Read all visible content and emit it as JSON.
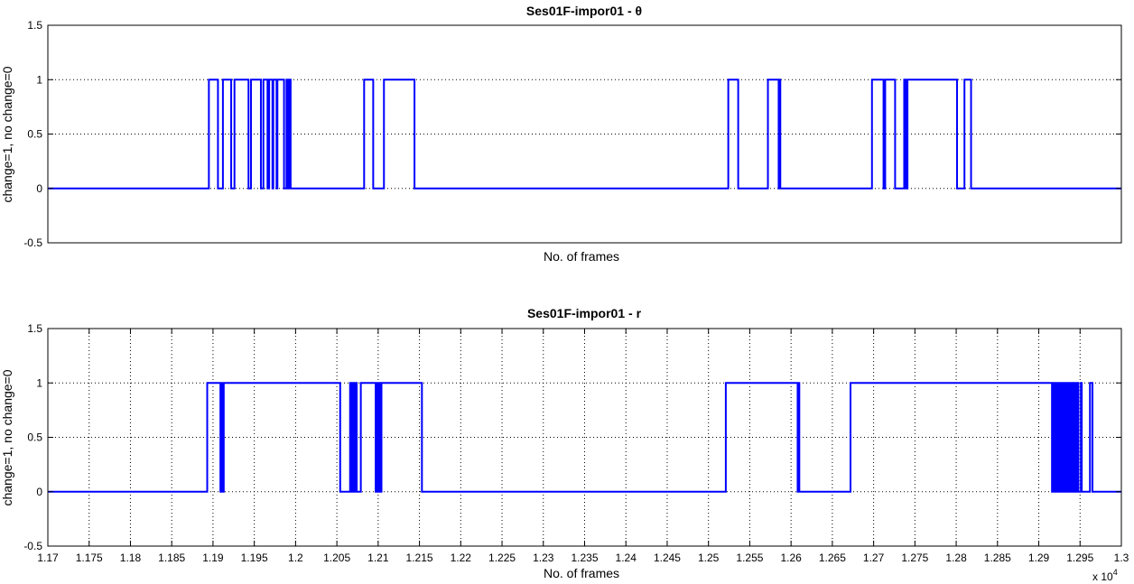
{
  "chart_data": [
    {
      "type": "line",
      "title": "Ses01F-impor01 - θ",
      "xlabel": "No. of frames",
      "ylabel": "change=1, no change=0",
      "xlim": [
        11700,
        13000
      ],
      "ylim": [
        -0.5,
        1.5
      ],
      "xgrid": false,
      "ygrid": true,
      "yticks": [
        "-0.5",
        "0",
        "0.5",
        "1",
        "1.5"
      ],
      "xticks": [],
      "series": [
        {
          "color": "#0000ff",
          "intervals_value_1": [
            [
              11895,
              11906
            ],
            [
              11912,
              11922
            ],
            [
              11926,
              11943
            ],
            [
              11946,
              11958
            ],
            [
              11961,
              11966
            ],
            [
              11968,
              11972
            ],
            [
              11973,
              11977
            ],
            [
              11978,
              11986
            ],
            [
              11989,
              11990
            ],
            [
              11991,
              11991.5
            ],
            [
              11992,
              11994
            ],
            [
              12083,
              12094
            ],
            [
              12107,
              12144
            ],
            [
              12524,
              12536
            ],
            [
              12572,
              12585
            ],
            [
              12586,
              12587
            ],
            [
              12698,
              12712
            ],
            [
              12714,
              12726
            ],
            [
              12737,
              12739
            ],
            [
              12741,
              12801
            ],
            [
              12810,
              12818
            ]
          ]
        }
      ]
    },
    {
      "type": "line",
      "title": "Ses01F-impor01 - r",
      "xlabel": "No. of frames",
      "ylabel": "change=1, no change=0",
      "xlim": [
        11700,
        13000
      ],
      "ylim": [
        -0.5,
        1.5
      ],
      "xgrid": true,
      "ygrid": true,
      "x_multiplier": "x 10",
      "x_multiplier_exponent": "4",
      "yticks": [
        "-0.5",
        "0",
        "0.5",
        "1",
        "1.5"
      ],
      "xticks": [
        "1.17",
        "1.175",
        "1.18",
        "1.185",
        "1.19",
        "1.195",
        "1.2",
        "1.205",
        "1.21",
        "1.215",
        "1.22",
        "1.225",
        "1.23",
        "1.235",
        "1.24",
        "1.245",
        "1.25",
        "1.255",
        "1.26",
        "1.265",
        "1.27",
        "1.275",
        "1.28",
        "1.285",
        "1.29",
        "1.295",
        "1.3"
      ],
      "series": [
        {
          "color": "#0000ff",
          "intervals_value_1": [
            [
              11893,
              11909
            ],
            [
              11910,
              11911
            ],
            [
              11913,
              12054
            ],
            [
              12066,
              12068
            ],
            [
              12069,
              12071
            ],
            [
              12072,
              12074
            ],
            [
              12079,
              12097
            ],
            [
              12098,
              12100
            ],
            [
              12101,
              12103
            ],
            [
              12104,
              12153
            ],
            [
              12521,
              12608
            ],
            [
              12609,
              12610
            ],
            [
              12672,
              12916
            ],
            [
              12918,
              12920
            ],
            [
              12922,
              12924
            ],
            [
              12926,
              12928
            ],
            [
              12930,
              12932
            ],
            [
              12934,
              12936
            ],
            [
              12938,
              12940
            ],
            [
              12942,
              12944
            ],
            [
              12946,
              12948
            ],
            [
              12951,
              12952
            ],
            [
              12962,
              12965
            ]
          ]
        }
      ]
    }
  ]
}
